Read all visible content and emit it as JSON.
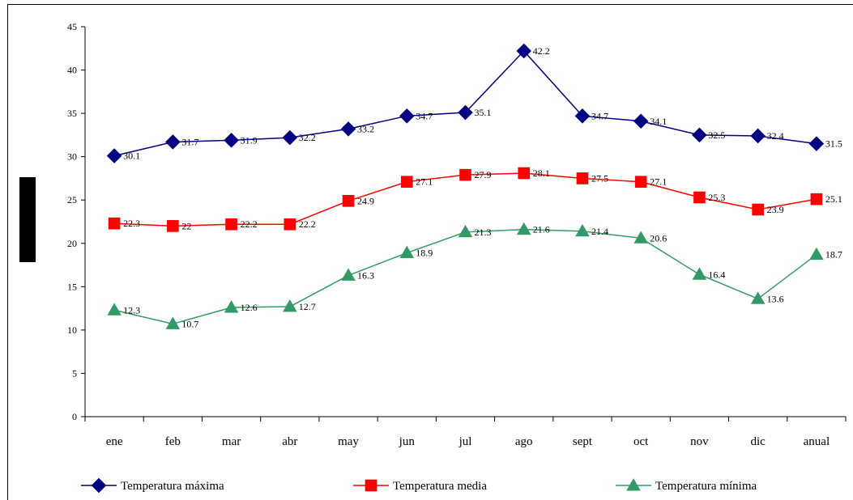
{
  "chart_data": {
    "type": "line",
    "categories": [
      "ene",
      "feb",
      "mar",
      "abr",
      "may",
      "jun",
      "jul",
      "ago",
      "sept",
      "oct",
      "nov",
      "dic",
      "anual"
    ],
    "ylim": [
      0,
      45
    ],
    "yticks": [
      "0",
      "5",
      "10",
      "15",
      "20",
      "25",
      "30",
      "35",
      "40",
      "45"
    ],
    "grid": false,
    "legend": "bottom",
    "series": [
      {
        "name": "Temperatura máxima",
        "color": "#000080",
        "marker": "diamond",
        "values": [
          30.1,
          31.7,
          31.9,
          32.2,
          33.2,
          34.7,
          35.1,
          42.2,
          34.7,
          34.1,
          32.5,
          32.4,
          31.5
        ],
        "labels": [
          "30.1",
          "31.7",
          "31.9",
          "32.2",
          "33.2",
          "34.7",
          "35.1",
          "42.2",
          "34.7",
          "34.1",
          "32.5",
          "32.4",
          "31.5"
        ]
      },
      {
        "name": "Temperatura media",
        "color": "#ff0000",
        "marker": "square",
        "values": [
          22.3,
          22,
          22.2,
          22.2,
          24.9,
          27.1,
          27.9,
          28.1,
          27.5,
          27.1,
          25.3,
          23.9,
          25.1
        ],
        "labels": [
          "22.3",
          "22",
          "22.2",
          "22.2",
          "24.9",
          "27.1",
          "27.9",
          "28.1",
          "27.5",
          "27.1",
          "25.3",
          "23.9",
          "25.1"
        ]
      },
      {
        "name": "Temperatura mínima",
        "color": "#339966",
        "marker": "triangle",
        "values": [
          12.3,
          10.7,
          12.6,
          12.7,
          16.3,
          18.9,
          21.3,
          21.6,
          21.4,
          20.6,
          16.4,
          13.6,
          18.7
        ],
        "labels": [
          "12.3",
          "10.7",
          "12.6",
          "12.7",
          "16.3",
          "18.9",
          "21.3",
          "21.6",
          "21.4",
          "20.6",
          "16.4",
          "13.6",
          "18.7"
        ]
      }
    ]
  }
}
